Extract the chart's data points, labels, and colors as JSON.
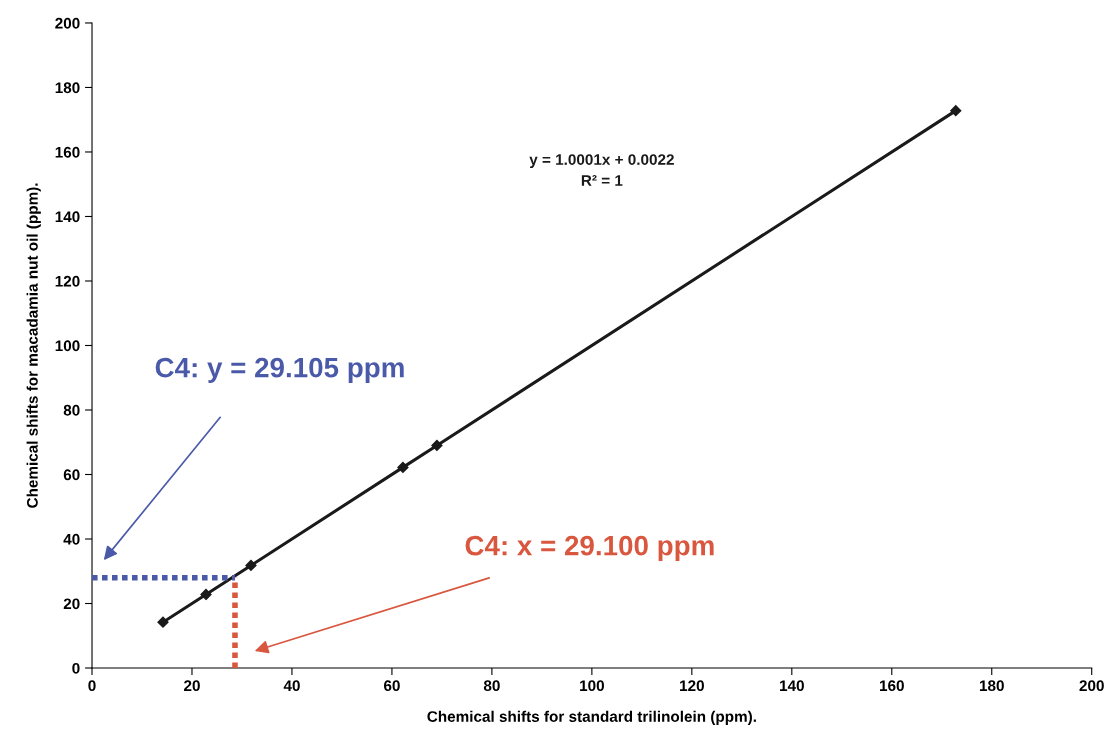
{
  "chart_data": {
    "type": "line",
    "xlabel": "Chemical shifts for standard trilinolein (ppm).",
    "ylabel": "Chemical shifts for macadamia nut oil (ppm).",
    "series": [
      {
        "type": "line",
        "color": "#1a1a1a",
        "marker": "diamond",
        "line_style": "solid",
        "x": [
          14.2,
          22.8,
          31.8,
          62.2,
          69,
          172.8
        ],
        "values": [
          14.2,
          22.8,
          31.8,
          62.2,
          69,
          172.8
        ]
      },
      {
        "type": "line",
        "color": "#4a5aa8",
        "marker": "none",
        "line_style": "dotted",
        "x": [
          0,
          28.6
        ],
        "values": [
          28,
          28
        ]
      },
      {
        "type": "line",
        "color": "#d9573f",
        "marker": "none",
        "line_style": "dotted",
        "x": [
          28.6,
          28.6
        ],
        "values": [
          0,
          28
        ]
      }
    ],
    "annotations": [
      "y = 1.0001x + 0.0022\nR² = 1",
      "C4: y = 29.105 ppm",
      "C4: x = 29.100 ppm"
    ],
    "xlim": [
      0,
      200
    ],
    "xticks": [
      0,
      20,
      40,
      60,
      80,
      100,
      120,
      140,
      160,
      180,
      200
    ],
    "ylim": [
      0,
      200
    ],
    "yticks": [
      0,
      20,
      40,
      60,
      80,
      100,
      120,
      140,
      160,
      180,
      200
    ],
    "grid": false,
    "legend": false
  }
}
